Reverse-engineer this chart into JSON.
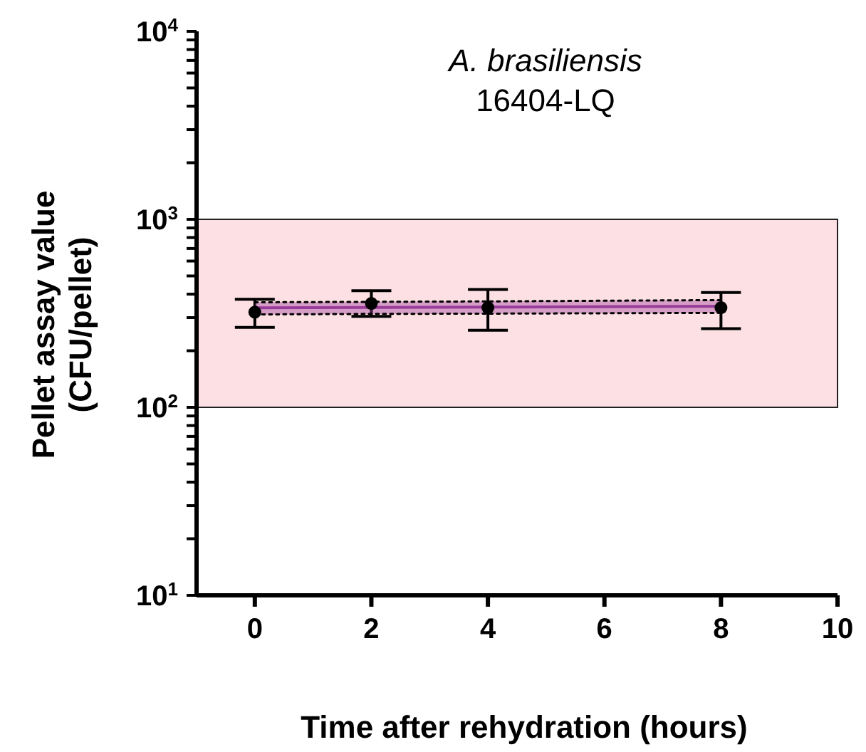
{
  "chart_data": {
    "type": "scatter",
    "title": "A. brasiliensis",
    "subtitle": "16404-LQ",
    "xlabel": "Time after rehydration (hours)",
    "ylabel": "Pellet assay value\n(CFU/pellet)",
    "x": [
      0,
      2,
      4,
      8
    ],
    "series": [
      {
        "color": "#000000",
        "values": [
          321,
          357,
          339,
          339
        ],
        "errors": [
          [
            266,
            376
          ],
          [
            305,
            417
          ],
          [
            257,
            424
          ],
          [
            262,
            408
          ]
        ],
        "marker": "circle"
      },
      {
        "type": "line",
        "color": "#9a3c9a",
        "values": [
          338,
          340,
          341,
          345
        ],
        "lower": [
          312,
          314,
          315,
          318
        ],
        "upper": [
          362,
          364,
          366,
          372
        ],
        "line_style": "solid"
      },
      {
        "type": "line",
        "color": "#000000",
        "values": [
          312,
          314,
          315,
          318
        ],
        "line_style": "dotted"
      },
      {
        "type": "line",
        "color": "#000000",
        "values": [
          362,
          364,
          366,
          372
        ],
        "line_style": "dotted"
      }
    ],
    "bands": [
      {
        "axis": "y",
        "from": 100,
        "to": 1000,
        "color": "#fde0e3"
      }
    ],
    "log": "y",
    "xlim": [
      -1,
      10
    ],
    "xticks": [
      0,
      2,
      4,
      6,
      8,
      10
    ],
    "ylim": [
      10,
      10000
    ],
    "yticks": [
      {
        "value": 10,
        "label": "10$^{1}$"
      },
      {
        "value": 20,
        "label": null
      },
      {
        "value": 30,
        "label": null
      },
      {
        "value": 40,
        "label": null
      },
      {
        "value": 50,
        "label": null
      },
      {
        "value": 60,
        "label": null
      },
      {
        "value": 70,
        "label": null
      },
      {
        "value": 80,
        "label": null
      },
      {
        "value": 90,
        "label": null
      },
      {
        "value": 100,
        "label": "10$^{2}$"
      },
      {
        "value": 200,
        "label": null
      },
      {
        "value": 300,
        "label": null
      },
      {
        "value": 400,
        "label": null
      },
      {
        "value": 500,
        "label": null
      },
      {
        "value": 600,
        "label": null
      },
      {
        "value": 700,
        "label": null
      },
      {
        "value": 800,
        "label": null
      },
      {
        "value": 900,
        "label": null
      },
      {
        "value": 1000,
        "label": "10$^{3}$"
      },
      {
        "value": 2000,
        "label": null
      },
      {
        "value": 3000,
        "label": null
      },
      {
        "value": 4000,
        "label": null
      },
      {
        "value": 5000,
        "label": null
      },
      {
        "value": 6000,
        "label": null
      },
      {
        "value": 7000,
        "label": null
      },
      {
        "value": 8000,
        "label": null
      },
      {
        "value": 9000,
        "label": null
      },
      {
        "value": 10000,
        "label": "10$^{4}$"
      }
    ]
  }
}
